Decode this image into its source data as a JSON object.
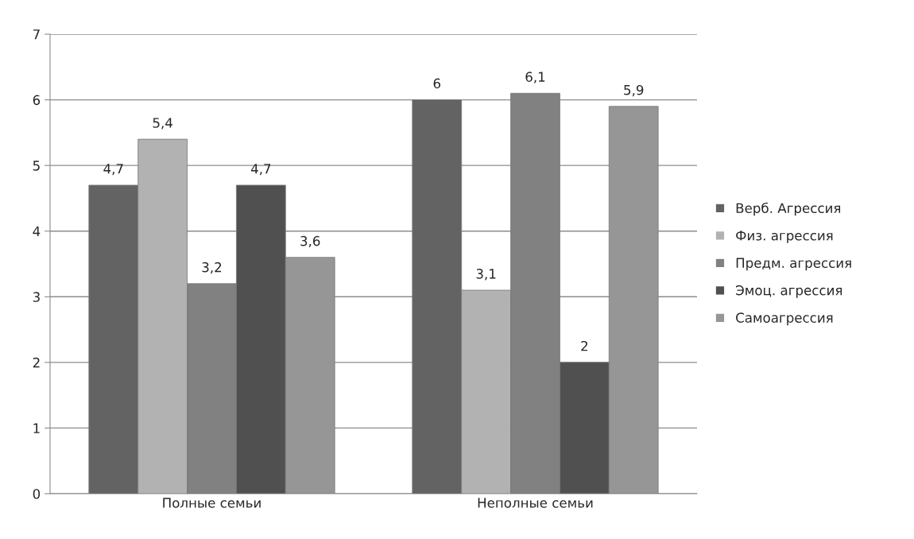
{
  "chart_data": {
    "type": "bar",
    "categories": [
      "Полные семьи",
      "Неполные семьи"
    ],
    "series": [
      {
        "name": "Верб. Агрессия",
        "color": "#636363",
        "values": [
          4.7,
          6
        ],
        "value_labels": [
          "4,7",
          "6"
        ]
      },
      {
        "name": "Физ. агрессия",
        "color": "#b2b2b2",
        "values": [
          5.4,
          3.1
        ],
        "value_labels": [
          "5,4",
          "3,1"
        ]
      },
      {
        "name": "Предм. агрессия",
        "color": "#818181",
        "values": [
          3.2,
          6.1
        ],
        "value_labels": [
          "3,2",
          "6,1"
        ]
      },
      {
        "name": "Эмоц. агрессия",
        "color": "#505050",
        "values": [
          4.7,
          2
        ],
        "value_labels": [
          "4,7",
          "2"
        ]
      },
      {
        "name": "Самоагрессия",
        "color": "#969696",
        "values": [
          3.6,
          5.9
        ],
        "value_labels": [
          "3,6",
          "5,9"
        ]
      }
    ],
    "ylim": [
      0,
      7
    ],
    "yticks": [
      0,
      1,
      2,
      3,
      4,
      5,
      6,
      7
    ],
    "grid": "y",
    "legend": "right"
  }
}
